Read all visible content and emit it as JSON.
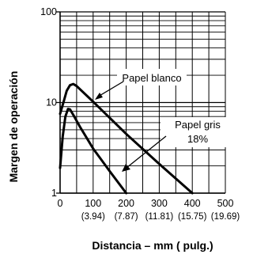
{
  "chart_data": {
    "type": "line",
    "xlabel": "Distancia – mm ( pulg.)",
    "ylabel": "Margen de operación",
    "xlim": [
      0,
      500
    ],
    "ylim": [
      1,
      100
    ],
    "yscale": "log",
    "grid": true,
    "x_ticks": [
      {
        "value": 0,
        "label": "0",
        "sub": ""
      },
      {
        "value": 100,
        "label": "100",
        "sub": "(3.94)"
      },
      {
        "value": 200,
        "label": "200",
        "sub": "(7.87)"
      },
      {
        "value": 300,
        "label": "300",
        "sub": "(11.81)"
      },
      {
        "value": 400,
        "label": "400",
        "sub": "(15.75)"
      },
      {
        "value": 500,
        "label": "500",
        "sub": "(19.69)"
      }
    ],
    "y_ticks": [
      {
        "value": 1,
        "label": "1"
      },
      {
        "value": 10,
        "label": "10"
      },
      {
        "value": 100,
        "label": "100"
      }
    ],
    "series": [
      {
        "name": "Papel blanco",
        "points": [
          [
            0,
            7.5
          ],
          [
            10,
            10
          ],
          [
            20,
            13.5
          ],
          [
            30,
            15.5
          ],
          [
            40,
            16
          ],
          [
            50,
            15.2
          ],
          [
            100,
            10.2
          ],
          [
            200,
            4.5
          ],
          [
            300,
            2.1
          ],
          [
            400,
            1
          ]
        ]
      },
      {
        "name": "Papel gris 18%",
        "points": [
          [
            0,
            1.9
          ],
          [
            8,
            4.2
          ],
          [
            16,
            7
          ],
          [
            24,
            8.5
          ],
          [
            30,
            8.4
          ],
          [
            40,
            7.3
          ],
          [
            60,
            5.4
          ],
          [
            100,
            3.1
          ],
          [
            150,
            1.75
          ],
          [
            200,
            1
          ]
        ]
      }
    ],
    "annotations": [
      {
        "text": "Papel blanco",
        "series": 0
      },
      {
        "text": "Papel gris",
        "text2": "18%",
        "series": 1
      }
    ]
  }
}
